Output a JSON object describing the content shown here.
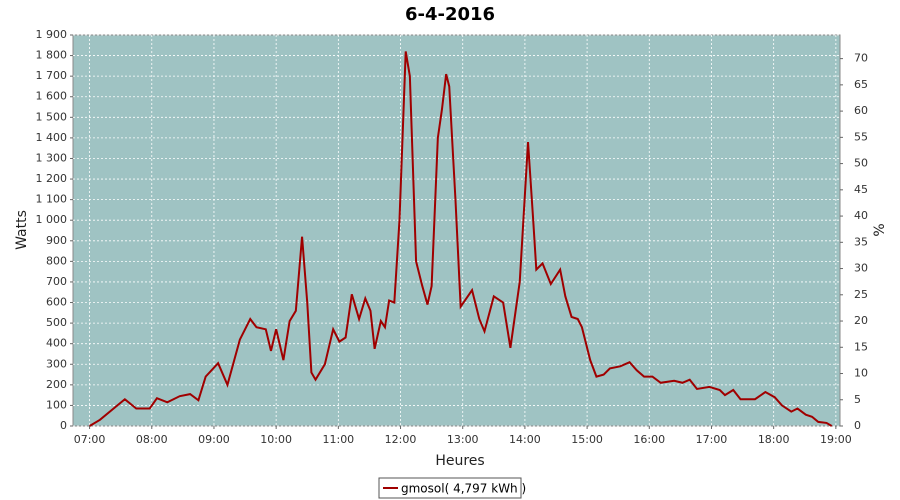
{
  "chart_data": {
    "type": "line",
    "title": "6-4-2016",
    "x_label": "Heures",
    "y_label": "Watts",
    "y2_label": "%",
    "x": [
      "07:00",
      "07:10",
      "07:34",
      "07:45",
      "07:58",
      "08:05",
      "08:15",
      "08:27",
      "08:37",
      "08:45",
      "08:52",
      "09:04",
      "09:13",
      "09:25",
      "09:35",
      "09:41",
      "09:50",
      "09:55",
      "10:00",
      "10:07",
      "10:13",
      "10:19",
      "10:25",
      "10:30",
      "10:34",
      "10:38",
      "10:47",
      "10:55",
      "11:01",
      "11:07",
      "11:13",
      "11:20",
      "11:26",
      "11:31",
      "11:35",
      "11:41",
      "11:45",
      "11:49",
      "11:54",
      "11:59",
      "12:05",
      "12:09",
      "12:15",
      "12:21",
      "12:26",
      "12:30",
      "12:36",
      "12:40",
      "12:44",
      "12:47",
      "12:53",
      "12:58",
      "13:09",
      "13:16",
      "13:21",
      "13:30",
      "13:39",
      "13:46",
      "13:55",
      "14:03",
      "14:08",
      "14:11",
      "14:17",
      "14:25",
      "14:34",
      "14:39",
      "14:45",
      "14:51",
      "14:55",
      "14:56",
      "15:03",
      "15:09",
      "15:16",
      "15:22",
      "15:32",
      "15:41",
      "15:48",
      "15:55",
      "16:03",
      "16:11",
      "16:24",
      "16:32",
      "16:39",
      "16:46",
      "16:58",
      "17:08",
      "17:13",
      "17:21",
      "17:28",
      "17:42",
      "17:52",
      "18:01",
      "18:08",
      "18:17",
      "18:23",
      "18:31",
      "18:37",
      "18:43",
      "18:51",
      "18:56"
    ],
    "series": [
      {
        "name": "gmosol( 4,797 kWh )",
        "color": "#a00000",
        "values": [
          0,
          30,
          130,
          85,
          85,
          135,
          115,
          145,
          155,
          125,
          240,
          305,
          200,
          420,
          520,
          480,
          470,
          365,
          470,
          320,
          510,
          560,
          920,
          600,
          260,
          225,
          300,
          470,
          410,
          430,
          640,
          520,
          620,
          560,
          375,
          510,
          480,
          610,
          600,
          1000,
          1820,
          1700,
          800,
          680,
          590,
          680,
          1400,
          1540,
          1710,
          1650,
          1100,
          580,
          660,
          520,
          460,
          630,
          600,
          380,
          700,
          1380,
          1000,
          760,
          790,
          690,
          760,
          630,
          530,
          520,
          480,
          460,
          320,
          240,
          250,
          280,
          290,
          310,
          270,
          240,
          240,
          210,
          220,
          210,
          225,
          180,
          190,
          175,
          150,
          175,
          130,
          130,
          165,
          140,
          100,
          70,
          85,
          55,
          45,
          20,
          15,
          0
        ]
      }
    ],
    "xlim": [
      "06:44",
      "19:04"
    ],
    "xticks": [
      "07:00",
      "08:00",
      "09:00",
      "10:00",
      "11:00",
      "12:00",
      "13:00",
      "14:00",
      "15:00",
      "16:00",
      "17:00",
      "18:00",
      "19:00"
    ],
    "ylim": [
      0,
      1900
    ],
    "yticks": [
      0,
      100,
      200,
      300,
      400,
      500,
      600,
      700,
      800,
      900,
      {
        "value": 1000,
        "label": "1 000"
      },
      {
        "value": 1100,
        "label": "1 100"
      },
      {
        "value": 1200,
        "label": "1 200"
      },
      {
        "value": 1300,
        "label": "1 300"
      },
      {
        "value": 1400,
        "label": "1 400"
      },
      {
        "value": 1500,
        "label": "1 500"
      },
      {
        "value": 1600,
        "label": "1 600"
      },
      {
        "value": 1700,
        "label": "1 700"
      },
      {
        "value": 1800,
        "label": "1 800"
      },
      {
        "value": 1900,
        "label": "1 900"
      }
    ],
    "y2lim": [
      0,
      74.5
    ],
    "y2ticks": [
      0,
      5,
      10,
      15,
      20,
      25,
      30,
      35,
      40,
      45,
      50,
      55,
      60,
      65,
      70
    ],
    "grid": true
  }
}
